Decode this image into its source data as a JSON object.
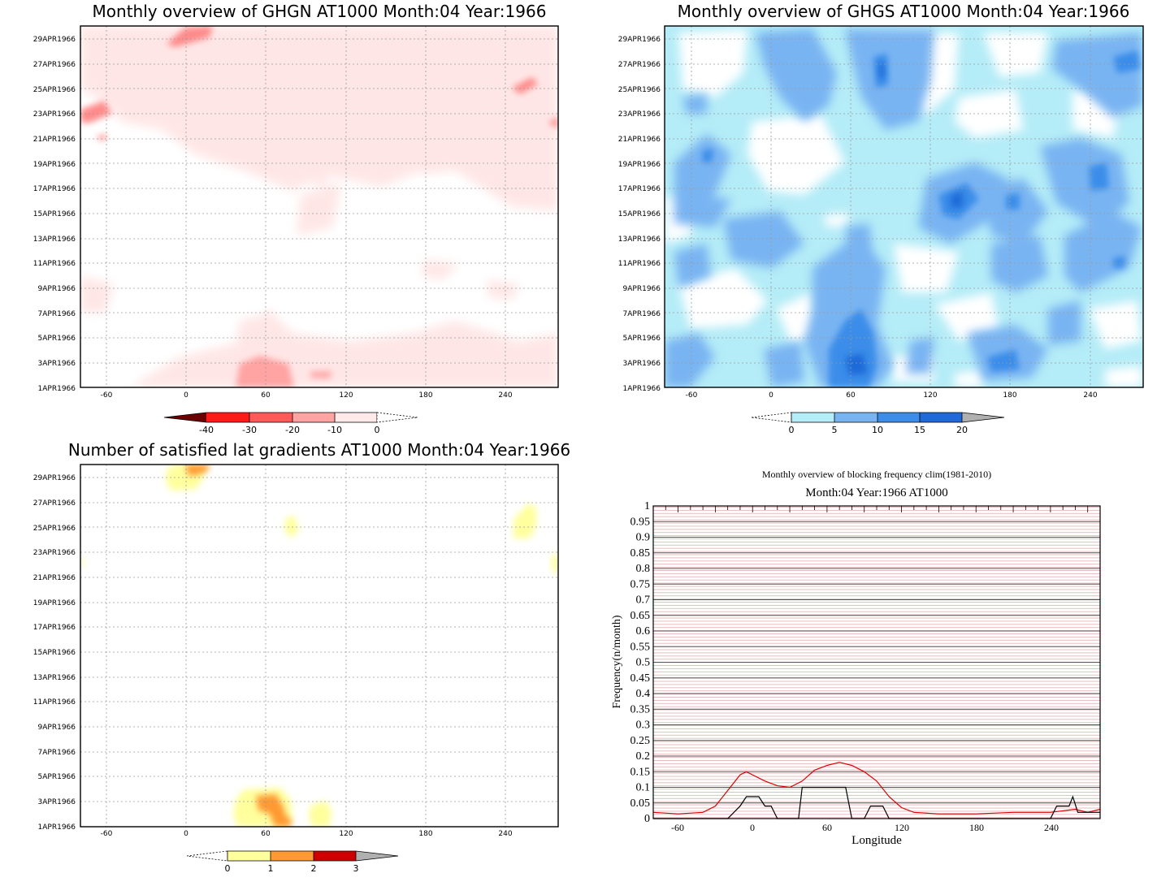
{
  "panels": {
    "ghgn": {
      "title": "Monthly overview of GHGN AT1000 Month:04 Year:1966",
      "colorbar": {
        "labels": [
          "-40",
          "-30",
          "-20",
          "-10",
          "0"
        ],
        "colors": [
          "#6b0000",
          "#ff1a1a",
          "#ff5a5a",
          "#ffa3a3",
          "#ffe9e9"
        ]
      }
    },
    "ghgs": {
      "title": "Monthly overview of GHGS AT1000 Month:04 Year:1966",
      "colorbar": {
        "labels": [
          "0",
          "5",
          "10",
          "15",
          "20"
        ],
        "colors": [
          "#b4ecf7",
          "#79b4f2",
          "#3b8de9",
          "#1f6ad8",
          "#b0b0b0"
        ]
      }
    },
    "lat": {
      "title": "Number of satisfied lat gradients AT1000 Month:04 Year:1966",
      "colorbar": {
        "labels": [
          "0",
          "1",
          "2",
          "3"
        ],
        "colors": [
          "#ffff9e",
          "#ff9933",
          "#cc0000",
          "#b0b0b0"
        ]
      }
    },
    "freq": {
      "title1": "Monthly overview of blocking frequency clim(1981-2010)",
      "title2": "Month:04 Year:1966  AT1000",
      "xlabel": "Longitude",
      "ylabel": "Frequency(n/month)"
    }
  },
  "axes": {
    "date_ticks": [
      "1APR1966",
      "3APR1966",
      "5APR1966",
      "7APR1966",
      "9APR1966",
      "11APR1966",
      "13APR1966",
      "15APR1966",
      "17APR1966",
      "19APR1966",
      "21APR1966",
      "23APR1966",
      "25APR1966",
      "27APR1966",
      "29APR1966"
    ],
    "lon_ticks": [
      "-60",
      "0",
      "60",
      "120",
      "180",
      "240"
    ],
    "freq_yticks": [
      "0",
      "0.05",
      "0.1",
      "0.15",
      "0.2",
      "0.25",
      "0.3",
      "0.35",
      "0.4",
      "0.45",
      "0.5",
      "0.55",
      "0.6",
      "0.65",
      "0.7",
      "0.75",
      "0.8",
      "0.85",
      "0.9",
      "0.95",
      "1"
    ]
  },
  "chart_data": [
    {
      "type": "heatmap",
      "title": "Monthly overview of GHGN AT1000 Month:04 Year:1966",
      "x_range": [
        -80,
        280
      ],
      "y_range": [
        "1APR1966",
        "30APR1966"
      ],
      "levels": [
        -40,
        -30,
        -20,
        -10,
        0
      ],
      "note_regions": [
        {
          "lon": [
            40,
            80
          ],
          "date": "1APR1966-3APR1966",
          "level": "-20 to -10"
        },
        {
          "lon": [
            -10,
            20
          ],
          "date": "29APR1966-30APR1966",
          "level": "-20 to -10"
        },
        {
          "lon": [
            -80,
            -55
          ],
          "date": "23APR1966-24APR1966",
          "level": "-20 to -10"
        },
        {
          "lon": [
            250,
            265
          ],
          "date": "25APR1966-26APR1966",
          "level": "-20 to -10"
        }
      ]
    },
    {
      "type": "heatmap",
      "title": "Monthly overview of GHGS AT1000 Month:04 Year:1966",
      "x_range": [
        -80,
        280
      ],
      "y_range": [
        "1APR1966",
        "30APR1966"
      ],
      "levels": [
        0,
        5,
        10,
        15,
        20
      ]
    },
    {
      "type": "heatmap",
      "title": "Number of satisfied lat gradients AT1000 Month:04 Year:1966",
      "x_range": [
        -80,
        280
      ],
      "y_range": [
        "1APR1966",
        "30APR1966"
      ],
      "levels": [
        0,
        1,
        2,
        3
      ]
    },
    {
      "type": "line",
      "title": "Monthly overview of blocking frequency clim(1981-2010)",
      "subtitle": "Month:04 Year:1966  AT1000",
      "xlabel": "Longitude",
      "ylabel": "Frequency(n/month)",
      "xlim": [
        -80,
        280
      ],
      "ylim": [
        0,
        1
      ],
      "series": [
        {
          "color": "#dd0000",
          "x": [
            -80,
            -60,
            -40,
            -30,
            -20,
            -10,
            -5,
            0,
            10,
            20,
            30,
            40,
            50,
            60,
            70,
            80,
            90,
            100,
            110,
            120,
            130,
            150,
            180,
            210,
            240,
            260,
            270,
            280
          ],
          "y": [
            0.02,
            0.015,
            0.02,
            0.04,
            0.09,
            0.14,
            0.15,
            0.14,
            0.12,
            0.105,
            0.1,
            0.12,
            0.155,
            0.17,
            0.18,
            0.17,
            0.15,
            0.12,
            0.07,
            0.035,
            0.02,
            0.015,
            0.015,
            0.02,
            0.02,
            0.03,
            0.02,
            0.03
          ]
        },
        {
          "color": "#000000",
          "x": [
            -80,
            -20,
            -10,
            -5,
            5,
            10,
            15,
            20,
            30,
            37,
            40,
            70,
            75,
            80,
            90,
            95,
            105,
            110,
            120,
            240,
            245,
            255,
            258,
            262,
            280
          ],
          "y": [
            0,
            0,
            0.04,
            0.07,
            0.07,
            0.04,
            0.04,
            0,
            0,
            0,
            0.1,
            0.1,
            0.1,
            0,
            0,
            0.04,
            0.04,
            0,
            0,
            0,
            0.04,
            0.04,
            0.07,
            0.02,
            0.02
          ]
        }
      ]
    }
  ]
}
